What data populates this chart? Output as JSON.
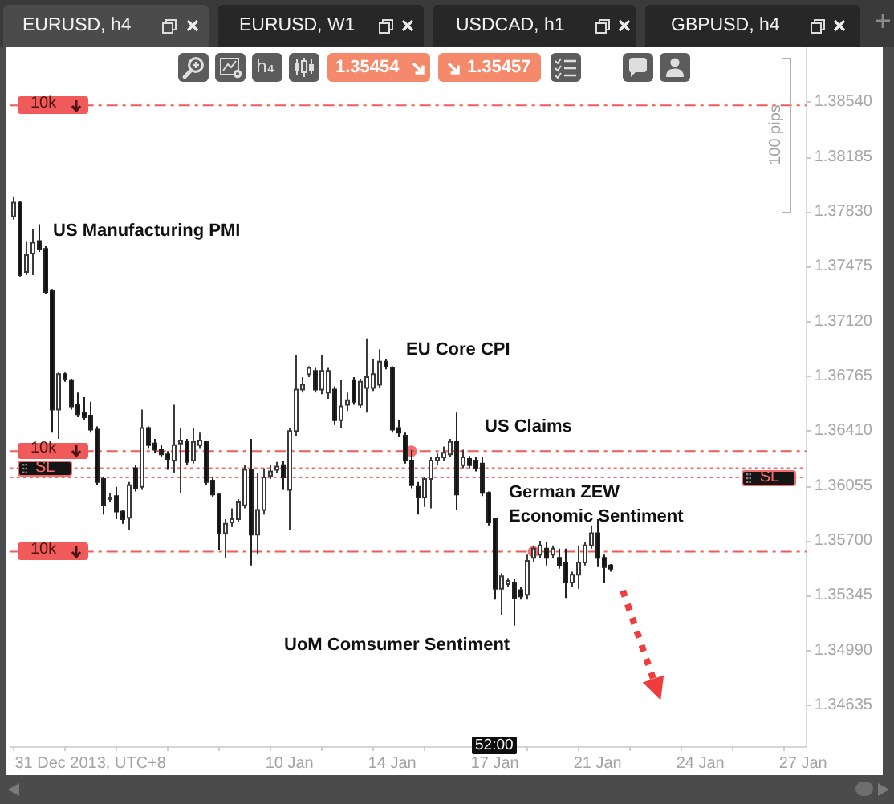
{
  "chart_data": {
    "type": "candlestick",
    "title": "EURUSD, h4",
    "categories": [
      null,
      null,
      null,
      null,
      null,
      null,
      null,
      null,
      null,
      null,
      null,
      null,
      "31 Dec 2013, UTC+8",
      null,
      null,
      null,
      null,
      null,
      null,
      null,
      null,
      null,
      null,
      null,
      null,
      null,
      null,
      null,
      null,
      null,
      null,
      null,
      null,
      null,
      null,
      null,
      null,
      null,
      null,
      null,
      null,
      null,
      null,
      "10 Jan",
      null,
      null,
      null,
      null,
      null,
      null,
      null,
      null,
      null,
      null,
      null,
      null,
      null,
      null,
      null,
      "14 Jan",
      null,
      null,
      null,
      null,
      null,
      null,
      null,
      null,
      null,
      null,
      null,
      null,
      null,
      null,
      null,
      "17 Jan",
      null,
      null,
      null,
      null,
      null,
      null,
      null,
      null,
      null,
      null,
      null,
      null,
      null,
      null,
      null,
      "21 Jan",
      null,
      null,
      null,
      null,
      null,
      null,
      null,
      null,
      null,
      null,
      null,
      null,
      null,
      null,
      null,
      "24 Jan",
      null,
      null,
      null,
      null,
      null,
      null,
      null,
      null,
      null,
      null,
      null,
      null,
      null,
      null,
      null,
      "27 Jan"
    ],
    "ohlc": [
      [
        1.378,
        1.3793,
        1.3778,
        1.3789
      ],
      [
        1.3789,
        1.379,
        1.3741,
        1.3742
      ],
      [
        1.3744,
        1.3764,
        1.3742,
        1.3755
      ],
      [
        1.3756,
        1.3772,
        1.3742,
        1.3763
      ],
      [
        1.3764,
        1.3775,
        1.3757,
        1.3759
      ],
      [
        1.3759,
        1.3761,
        1.373,
        1.3731
      ],
      [
        1.3732,
        1.3733,
        1.364,
        1.3655
      ],
      [
        1.3655,
        1.3679,
        1.3636,
        1.3678
      ],
      [
        1.3678,
        1.3679,
        1.3673,
        1.3675
      ],
      [
        1.3674,
        1.3675,
        1.3655,
        1.3657
      ],
      [
        1.3658,
        1.3666,
        1.365,
        1.3652
      ],
      [
        1.3653,
        1.3663,
        1.3648,
        1.365
      ],
      [
        1.3651,
        1.366,
        1.364,
        1.3642
      ],
      [
        1.3642,
        1.3644,
        1.3606,
        1.3608
      ],
      [
        1.361,
        1.3611,
        1.3587,
        1.3593
      ],
      [
        1.3597,
        1.3601,
        1.3595,
        1.3598
      ],
      [
        1.3599,
        1.3605,
        1.3584,
        1.3589
      ],
      [
        1.3589,
        1.359,
        1.3581,
        1.3584
      ],
      [
        1.3585,
        1.3608,
        1.3577,
        1.3606
      ],
      [
        1.3617,
        1.3619,
        1.3602,
        1.3604
      ],
      [
        1.3605,
        1.3655,
        1.3603,
        1.3643
      ],
      [
        1.3643,
        1.3644,
        1.363,
        1.3632
      ],
      [
        1.3633,
        1.3636,
        1.3627,
        1.3629
      ],
      [
        1.3629,
        1.3632,
        1.3624,
        1.3626
      ],
      [
        1.3626,
        1.3628,
        1.3616,
        1.3623
      ],
      [
        1.3622,
        1.3658,
        1.3614,
        1.3632
      ],
      [
        1.3633,
        1.3643,
        1.3601,
        1.3635
      ],
      [
        1.3634,
        1.3636,
        1.3619,
        1.3621
      ],
      [
        1.3622,
        1.3643,
        1.362,
        1.3634
      ],
      [
        1.3632,
        1.364,
        1.363,
        1.3635
      ],
      [
        1.3634,
        1.3635,
        1.3606,
        1.3608
      ],
      [
        1.3609,
        1.3611,
        1.3598,
        1.36
      ],
      [
        1.36,
        1.3601,
        1.3564,
        1.3575
      ],
      [
        1.3575,
        1.3584,
        1.3559,
        1.3581
      ],
      [
        1.3582,
        1.3591,
        1.3579,
        1.3584
      ],
      [
        1.3584,
        1.3597,
        1.3582,
        1.3595
      ],
      [
        1.3593,
        1.3619,
        1.3591,
        1.3616
      ],
      [
        1.3616,
        1.3636,
        1.3554,
        1.3574
      ],
      [
        1.3574,
        1.3614,
        1.3561,
        1.359
      ],
      [
        1.359,
        1.3617,
        1.3587,
        1.3611
      ],
      [
        1.3612,
        1.3619,
        1.361,
        1.3615
      ],
      [
        1.3616,
        1.3621,
        1.3614,
        1.3618
      ],
      [
        1.3619,
        1.3622,
        1.3603,
        1.3611
      ],
      [
        1.3603,
        1.3643,
        1.3577,
        1.3641
      ],
      [
        1.3641,
        1.369,
        1.3638,
        1.3668
      ],
      [
        1.3668,
        1.3676,
        1.3666,
        1.3671
      ],
      [
        1.3678,
        1.3683,
        1.3676,
        1.3682
      ],
      [
        1.368,
        1.3682,
        1.3666,
        1.3668
      ],
      [
        1.3668,
        1.369,
        1.3665,
        1.368
      ],
      [
        1.3666,
        1.3682,
        1.3662,
        1.368
      ],
      [
        1.3668,
        1.367,
        1.3645,
        1.3648
      ],
      [
        1.3648,
        1.3674,
        1.3643,
        1.3657
      ],
      [
        1.3658,
        1.3666,
        1.3654,
        1.3661
      ],
      [
        1.3674,
        1.3676,
        1.3658,
        1.366
      ],
      [
        1.3658,
        1.3675,
        1.3656,
        1.3673
      ],
      [
        1.3669,
        1.3701,
        1.3653,
        1.3676
      ],
      [
        1.3669,
        1.3688,
        1.3667,
        1.3678
      ],
      [
        1.3671,
        1.3694,
        1.3669,
        1.3686
      ],
      [
        1.3686,
        1.3688,
        1.3681,
        1.3683
      ],
      [
        1.3682,
        1.3683,
        1.364,
        1.3642
      ],
      [
        1.3643,
        1.3648,
        1.3637,
        1.364
      ],
      [
        1.3638,
        1.364,
        1.362,
        1.3622
      ],
      [
        1.3622,
        1.3629,
        1.3604,
        1.3606
      ],
      [
        1.3605,
        1.3608,
        1.3587,
        1.3598
      ],
      [
        1.3598,
        1.3611,
        1.3592,
        1.361
      ],
      [
        1.361,
        1.3624,
        1.3591,
        1.3622
      ],
      [
        1.3622,
        1.3627,
        1.3619,
        1.3624
      ],
      [
        1.3624,
        1.3631,
        1.3622,
        1.3627
      ],
      [
        1.3626,
        1.3636,
        1.3624,
        1.3634
      ],
      [
        1.3634,
        1.3653,
        1.359,
        1.36
      ],
      [
        1.3619,
        1.3629,
        1.3617,
        1.3624
      ],
      [
        1.3623,
        1.3625,
        1.3617,
        1.3619
      ],
      [
        1.3622,
        1.3624,
        1.3615,
        1.3617
      ],
      [
        1.362,
        1.3624,
        1.3599,
        1.3601
      ],
      [
        1.3601,
        1.3602,
        1.358,
        1.3582
      ],
      [
        1.3584,
        1.3585,
        1.3532,
        1.3539
      ],
      [
        1.3539,
        1.3549,
        1.3522,
        1.3547
      ],
      [
        1.3542,
        1.3546,
        1.354,
        1.3544
      ],
      [
        1.3543,
        1.3545,
        1.3515,
        1.3533
      ],
      [
        1.3538,
        1.354,
        1.3532,
        1.3534
      ],
      [
        1.3535,
        1.3561,
        1.3532,
        1.3557
      ],
      [
        1.3559,
        1.3567,
        1.3556,
        1.3565
      ],
      [
        1.3561,
        1.357,
        1.3559,
        1.3567
      ],
      [
        1.3565,
        1.3569,
        1.3554,
        1.3559
      ],
      [
        1.3561,
        1.3567,
        1.3559,
        1.3565
      ],
      [
        1.3559,
        1.3565,
        1.3552,
        1.3554
      ],
      [
        1.3556,
        1.3565,
        1.3533,
        1.3543
      ],
      [
        1.3543,
        1.355,
        1.354,
        1.3548
      ],
      [
        1.3548,
        1.3567,
        1.3539,
        1.3556
      ],
      [
        1.3556,
        1.3569,
        1.3554,
        1.3567
      ],
      [
        1.3567,
        1.358,
        1.3565,
        1.3575
      ],
      [
        1.3575,
        1.3584,
        1.3553,
        1.3559
      ],
      [
        1.3559,
        1.3561,
        1.3543,
        1.3553
      ],
      [
        1.3554,
        1.3555,
        1.355,
        1.3552
      ],
      null,
      null,
      null,
      null,
      null,
      null,
      null,
      null,
      null,
      null,
      null,
      null,
      null,
      null,
      null,
      null,
      null,
      null,
      null,
      null,
      null,
      null,
      null,
      null,
      null,
      null,
      null,
      null,
      null,
      null
    ],
    "series": [
      {
        "type": "scatter",
        "color": "#f04a4a",
        "values": [
          null,
          null,
          null,
          null,
          null,
          null,
          null,
          null,
          null,
          null,
          null,
          null,
          null,
          null,
          null,
          null,
          null,
          null,
          null,
          null,
          null,
          null,
          null,
          null,
          null,
          null,
          null,
          null,
          null,
          null,
          null,
          null,
          null,
          null,
          null,
          null,
          null,
          null,
          null,
          null,
          null,
          null,
          null,
          null,
          null,
          null,
          null,
          null,
          null,
          null,
          null,
          null,
          null,
          null,
          null,
          null,
          null,
          null,
          null,
          null,
          null,
          null,
          1.3628,
          null,
          null,
          null,
          null,
          null,
          null,
          null,
          null,
          null,
          null,
          null,
          null,
          null,
          null,
          null,
          null,
          null,
          null,
          1.3563,
          null,
          null,
          null,
          null,
          null,
          null,
          null,
          null,
          null,
          null,
          null,
          null,
          null,
          null,
          null,
          null,
          null,
          null,
          null,
          null,
          null,
          null,
          null,
          null,
          null,
          null,
          null,
          null,
          null,
          null,
          null,
          null,
          null,
          null,
          null,
          null,
          null,
          null,
          null,
          null,
          null,
          null
        ]
      }
    ],
    "marker": "circle",
    "ylim": [
      1.3437,
      1.3889
    ],
    "yticks": [
      1.34635,
      {
        "value": 1.3499,
        "label": "1.34990"
      },
      1.35345,
      {
        "value": 1.357,
        "label": "1.35700"
      },
      1.36055,
      {
        "value": 1.3641,
        "label": "1.36410"
      },
      1.36765,
      {
        "value": 1.3712,
        "label": "1.37120"
      },
      1.37475,
      {
        "value": 1.3783,
        "label": "1.37830"
      },
      1.38185,
      {
        "value": 1.3854,
        "label": "1.38540"
      }
    ],
    "ref_lines": [
      {
        "axis": "y",
        "value": 1.3852,
        "label": "10k",
        "color": "#f05a5a",
        "line_style": "dashed"
      },
      {
        "axis": "y",
        "value": 1.3628,
        "label": "10k",
        "color": "#f05a5a",
        "line_style": "dashed"
      },
      {
        "axis": "y",
        "value": 1.3617,
        "label": "SL",
        "color": "#f26c6c",
        "line_style": "dotted"
      },
      {
        "axis": "y",
        "value": 1.3611,
        "label": "SL",
        "color": "#f26c6c",
        "line_style": "dotted"
      },
      {
        "axis": "y",
        "value": 1.3563,
        "label": "10k",
        "color": "#f05a5a",
        "line_style": "dashed"
      }
    ],
    "annotations": [
      "US Manufacturing PMI",
      "EU Core CPI",
      "US Claims",
      "German ZEW Economic Sentiment",
      "UoM Comsumer Sentiment",
      "100 pips",
      "52:00",
      "EURUSD, W1",
      "USDCAD, h1",
      "GBPUSD, h4",
      "h₄",
      "1.35454",
      "1.35457"
    ]
  }
}
